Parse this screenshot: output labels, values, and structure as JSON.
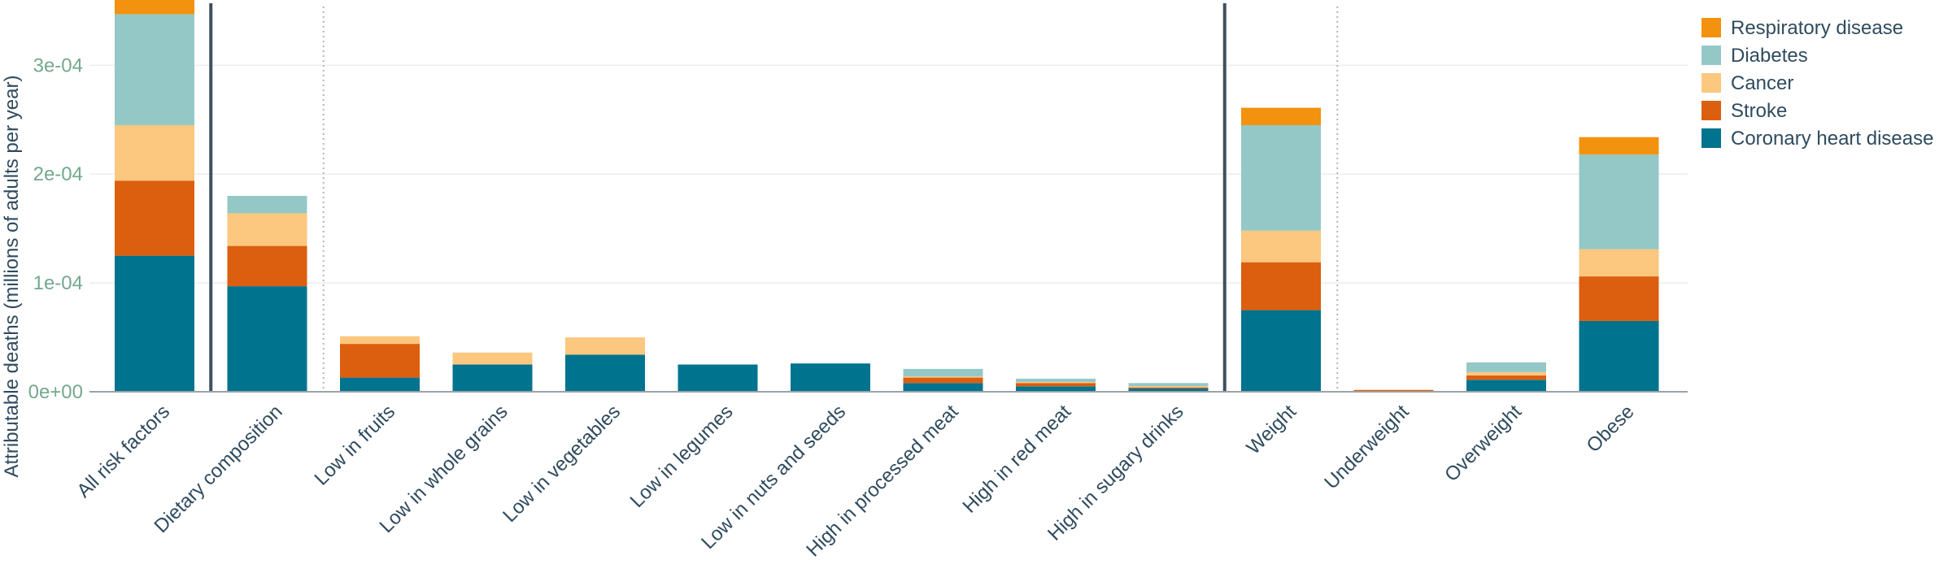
{
  "chart_data": {
    "type": "bar",
    "stacked": true,
    "ylabel": "Attributable deaths (millions of adults per year)",
    "ylim": [
      0,
      0.00036
    ],
    "yticks": [
      {
        "value": 0,
        "label": "0e+00"
      },
      {
        "value": 0.0001,
        "label": "1e-04"
      },
      {
        "value": 0.0002,
        "label": "2e-04"
      },
      {
        "value": 0.0003,
        "label": "3e-04"
      }
    ],
    "grid": true,
    "legend_position": "top-right",
    "categories": [
      "All risk factors",
      "Dietary composition",
      "Low in fruits",
      "Low in whole grains",
      "Low in vegetables",
      "Low in legumes",
      "Low in nuts and seeds",
      "High in processed meat",
      "High in red meat",
      "High in sugary drinks",
      "Weight",
      "Underweight",
      "Overweight",
      "Obese"
    ],
    "series": [
      {
        "name": "Coronary heart disease",
        "color": "#00738f",
        "values": [
          0.000125,
          9.7e-05,
          1.3e-05,
          2.5e-05,
          3.4e-05,
          2.5e-05,
          2.6e-05,
          8e-06,
          5e-06,
          3e-06,
          7.5e-05,
          0.0,
          1.1e-05,
          6.5e-05
        ]
      },
      {
        "name": "Stroke",
        "color": "#dc5e0f",
        "values": [
          6.9e-05,
          3.7e-05,
          3.1e-05,
          0,
          0,
          0,
          0,
          5e-06,
          3e-06,
          1e-06,
          4.4e-05,
          1.5e-06,
          4e-06,
          4.1e-05
        ]
      },
      {
        "name": "Cancer",
        "color": "#fcc77f",
        "values": [
          5.1e-05,
          3e-05,
          7e-06,
          1.1e-05,
          1.6e-05,
          0,
          0,
          1e-06,
          1e-06,
          1e-06,
          2.9e-05,
          5e-07,
          3e-06,
          2.5e-05
        ]
      },
      {
        "name": "Diabetes",
        "color": "#94c8c6",
        "values": [
          0.000102,
          1.6e-05,
          0,
          0,
          0,
          0,
          0,
          7e-06,
          3e-06,
          3e-06,
          9.7e-05,
          0,
          9e-06,
          8.7e-05
        ]
      },
      {
        "name": "Respiratory disease",
        "color": "#f2920e",
        "values": [
          1.5e-05,
          0,
          0,
          0,
          0,
          0,
          0,
          0,
          0,
          0,
          1.6e-05,
          0,
          0,
          1.6e-05
        ]
      }
    ],
    "group_separators": [
      {
        "after_index": 0,
        "style": "solid"
      },
      {
        "after_index": 1,
        "style": "dotted"
      },
      {
        "after_index": 9,
        "style": "solid"
      },
      {
        "after_index": 10,
        "style": "dotted"
      }
    ],
    "legend_order": [
      "Respiratory disease",
      "Diabetes",
      "Cancer",
      "Stroke",
      "Coronary heart disease"
    ],
    "colors": {
      "axis_text": "#2f4b5e",
      "tick_y": "#74a88e",
      "grid": "#ececec",
      "axis_line": "#9aa3aa",
      "separator": "#40505c",
      "dotted_separator": "#b4b4be"
    }
  }
}
